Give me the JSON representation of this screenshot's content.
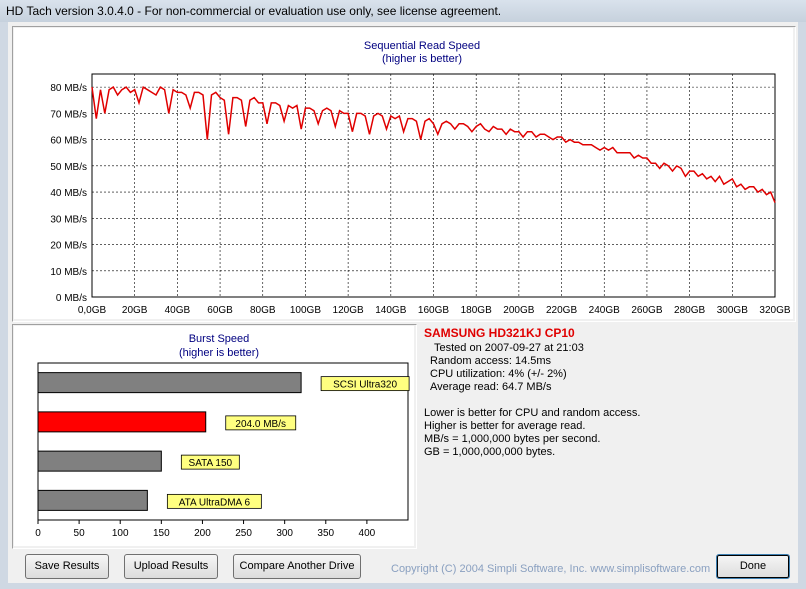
{
  "window": {
    "title": "HD Tach version 3.0.4.0  - For non-commercial or evaluation use only, see license agreement."
  },
  "seq_chart": {
    "title": "Sequential Read Speed",
    "subtitle": "(higher is better)",
    "line_color": "#e00000",
    "chart_data": {
      "type": "line",
      "title": "Sequential Read Speed",
      "subtitle": "(higher is better)",
      "xlabel": "",
      "ylabel": "",
      "ylim": [
        0,
        85
      ],
      "xlim": [
        0,
        320
      ],
      "grid": true,
      "y_ticks": [
        "0 MB/s",
        "10 MB/s",
        "20 MB/s",
        "30 MB/s",
        "40 MB/s",
        "50 MB/s",
        "60 MB/s",
        "70 MB/s",
        "80 MB/s"
      ],
      "x_ticks": [
        "0,0GB",
        "20GB",
        "40GB",
        "60GB",
        "80GB",
        "100GB",
        "120GB",
        "140GB",
        "160GB",
        "180GB",
        "200GB",
        "220GB",
        "240GB",
        "260GB",
        "280GB",
        "300GB",
        "320GB"
      ],
      "series": [
        {
          "x": [
            0,
            2,
            4,
            6,
            8,
            10,
            12,
            14,
            16,
            18,
            20,
            22,
            24,
            26,
            28,
            30,
            32,
            34,
            36,
            38,
            40,
            42,
            44,
            46,
            48,
            50,
            52,
            54,
            56,
            58,
            60,
            62,
            64,
            66,
            68,
            70,
            72,
            74,
            76,
            78,
            80,
            82,
            84,
            86,
            88,
            90,
            92,
            94,
            96,
            98,
            100,
            102,
            104,
            106,
            108,
            110,
            112,
            114,
            116,
            118,
            120,
            122,
            124,
            126,
            128,
            130,
            132,
            134,
            136,
            138,
            140,
            142,
            144,
            146,
            148,
            150,
            152,
            154,
            156,
            158,
            160,
            162,
            164,
            166,
            168,
            170,
            172,
            174,
            176,
            178,
            180,
            182,
            184,
            186,
            188,
            190,
            192,
            194,
            196,
            198,
            200,
            202,
            204,
            206,
            208,
            210,
            212,
            214,
            216,
            218,
            220,
            222,
            224,
            226,
            228,
            230,
            232,
            234,
            236,
            238,
            240,
            242,
            244,
            246,
            248,
            250,
            252,
            254,
            256,
            258,
            260,
            262,
            264,
            266,
            268,
            270,
            272,
            274,
            276,
            278,
            280,
            282,
            284,
            286,
            288,
            290,
            292,
            294,
            296,
            298,
            300,
            302,
            304,
            306,
            308,
            310,
            312,
            314,
            316,
            318,
            320
          ],
          "y": [
            80,
            68,
            79,
            70,
            79,
            80,
            77,
            79,
            80,
            78,
            79,
            74,
            80,
            79,
            78,
            77,
            80,
            79,
            70,
            79,
            78,
            78,
            77,
            72,
            78,
            78,
            77,
            60,
            77,
            78,
            76,
            75,
            62,
            76,
            76,
            75,
            65,
            75,
            76,
            74,
            74,
            66,
            74,
            74,
            73,
            67,
            73,
            72,
            73,
            64,
            72,
            72,
            71,
            66,
            71,
            72,
            71,
            65,
            71,
            70,
            70,
            63,
            70,
            70,
            69,
            62,
            69,
            70,
            69,
            64,
            69,
            68,
            69,
            63,
            68,
            68,
            67,
            60,
            67,
            68,
            66,
            62,
            66,
            67,
            66,
            64,
            66,
            66,
            65,
            63,
            65,
            66,
            64,
            63,
            65,
            64,
            64,
            62,
            64,
            63,
            63,
            61,
            63,
            63,
            61,
            62,
            62,
            61,
            60,
            61,
            61,
            59,
            60,
            59,
            59,
            58,
            58,
            58,
            57,
            56,
            57,
            56,
            57,
            55,
            55,
            55,
            55,
            53,
            54,
            53,
            53,
            51,
            51,
            49,
            51,
            50,
            48,
            50,
            49,
            46,
            48,
            48,
            46,
            47,
            45,
            46,
            44,
            46,
            43,
            44,
            45,
            42,
            43,
            41,
            42,
            42,
            40,
            41,
            39,
            40,
            36
          ]
        }
      ]
    }
  },
  "burst_chart": {
    "title": "Burst Speed",
    "subtitle": "(higher is better)",
    "chart_data": {
      "type": "bar",
      "categories": [
        "SCSI Ultra320",
        "204.0 MB/s",
        "SATA 150",
        "ATA UltraDMA 6"
      ],
      "values": [
        320,
        204,
        150,
        133
      ],
      "colors": [
        "#808080",
        "#ff0000",
        "#808080",
        "#808080"
      ],
      "xlim": [
        0,
        450
      ],
      "x_ticks": [
        "0",
        "50",
        "100",
        "150",
        "200",
        "250",
        "300",
        "350",
        "400"
      ],
      "label_bg": "#ffff80"
    }
  },
  "info": {
    "drive_name": "SAMSUNG HD321KJ CP10",
    "tested_on": "Tested on 2007-09-27 at 21:03",
    "random_access": "Random access: 14.5ms",
    "cpu_utilization": "CPU utilization: 4% (+/- 2%)",
    "average_read": "Average read: 64.7 MB/s",
    "note1": "Lower is better for CPU and random access.",
    "note2": "Higher is better for average read.",
    "note3": "MB/s = 1,000,000 bytes per second.",
    "note4": "GB = 1,000,000,000 bytes."
  },
  "footer": {
    "save_label": "Save Results",
    "upload_label": "Upload Results",
    "compare_label": "Compare Another Drive",
    "copyright": "Copyright (C) 2004 Simpli Software, Inc. www.simplisoftware.com",
    "done_label": "Done"
  }
}
